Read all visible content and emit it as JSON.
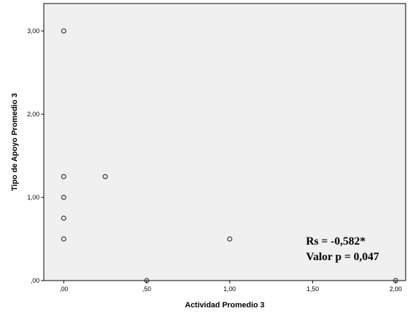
{
  "chart_data": {
    "type": "scatter",
    "xlabel": "Actividad Promedio 3",
    "ylabel": "Tipo de Apoyo Promedio 3",
    "xlim": [
      -0.12,
      2.06
    ],
    "ylim": [
      0,
      3.33
    ],
    "x_ticks": [
      {
        "value": 0,
        "label": ",00"
      },
      {
        "value": 0.5,
        "label": ",50"
      },
      {
        "value": 1,
        "label": "1,00"
      },
      {
        "value": 1.5,
        "label": "1,50"
      },
      {
        "value": 2,
        "label": "2,00"
      }
    ],
    "y_ticks": [
      {
        "value": 0,
        "label": ",00"
      },
      {
        "value": 1,
        "label": "1,00"
      },
      {
        "value": 2,
        "label": "2,00"
      },
      {
        "value": 3,
        "label": "3,00"
      }
    ],
    "grid": false,
    "points": [
      {
        "x": 0,
        "y": 3.0
      },
      {
        "x": 0,
        "y": 1.25
      },
      {
        "x": 0,
        "y": 1.0
      },
      {
        "x": 0,
        "y": 0.75
      },
      {
        "x": 0,
        "y": 0.5
      },
      {
        "x": 0.25,
        "y": 1.25
      },
      {
        "x": 0.5,
        "y": 0
      },
      {
        "x": 1.0,
        "y": 0.5
      },
      {
        "x": 2.0,
        "y": 0
      }
    ],
    "annotations": [
      "Rs = -0,582*",
      "Valor p = 0,047"
    ],
    "colors": {
      "plot_background": "#f0f0f0",
      "marker_stroke": "#333333"
    }
  }
}
